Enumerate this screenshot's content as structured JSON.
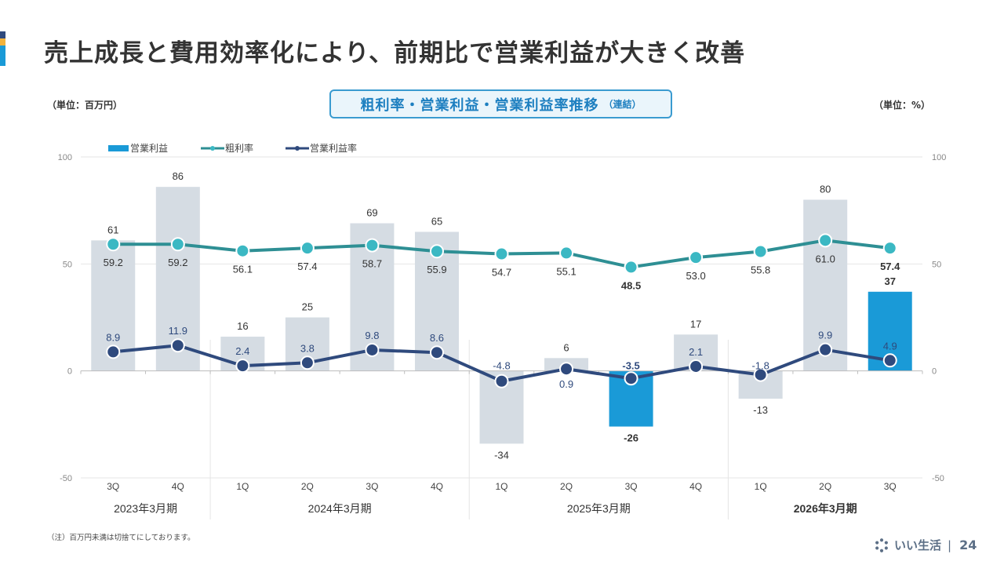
{
  "page": {
    "title": "売上成長と費用効率化により、前期比で営業利益が大きく改善",
    "unit_left": "（単位：百万円）",
    "unit_right": "（単位：%）",
    "chart_title": "粗利率・営業利益・営業利益率推移",
    "chart_title_sub": "（連結）",
    "note": "（注）百万円未満は切捨てにしております。",
    "brand": "いい生活",
    "page_number": "24"
  },
  "colors": {
    "bar_default": "#d5dce3",
    "bar_highlight": "#1a9ad7",
    "gross_margin_line": "#2e8f94",
    "gross_margin_marker": "#3bb8c3",
    "op_margin_line": "#2f4a7d",
    "op_margin_marker": "#2f4a7d",
    "accent_navy": "#2f4a7d",
    "accent_yellow": "#f2b33d",
    "accent_blue": "#1a9ad7"
  },
  "chart_data": {
    "type": "bar+line",
    "title": "粗利率・営業利益・営業利益率推移（連結）",
    "legend": [
      "営業利益",
      "粗利率",
      "営業利益率"
    ],
    "legend_position": "top-left",
    "categories": [
      "3Q",
      "4Q",
      "1Q",
      "2Q",
      "3Q",
      "4Q",
      "1Q",
      "2Q",
      "3Q",
      "4Q",
      "1Q",
      "2Q",
      "3Q"
    ],
    "groups": [
      {
        "label": "2023年3月期",
        "count": 2,
        "bold": false
      },
      {
        "label": "2024年3月期",
        "count": 4,
        "bold": false
      },
      {
        "label": "2025年3月期",
        "count": 4,
        "bold": false
      },
      {
        "label": "2026年3月期",
        "count": 3,
        "bold": true
      }
    ],
    "y_left": {
      "label": "百万円",
      "range": [
        -50,
        100
      ],
      "ticks": [
        100,
        50,
        0,
        -50
      ]
    },
    "y_right": {
      "label": "%",
      "range": [
        -50,
        100
      ],
      "ticks": [
        100,
        50,
        0,
        -50
      ]
    },
    "grid": true,
    "series": [
      {
        "name": "営業利益",
        "type": "bar",
        "axis": "left",
        "values": [
          61,
          86,
          16,
          25,
          69,
          65,
          -34,
          6,
          -26,
          17,
          -13,
          80,
          37
        ],
        "highlight": [
          false,
          false,
          false,
          false,
          false,
          false,
          false,
          false,
          true,
          false,
          false,
          false,
          true
        ]
      },
      {
        "name": "粗利率",
        "type": "line",
        "axis": "right",
        "values": [
          59.2,
          59.2,
          56.1,
          57.4,
          58.7,
          55.9,
          54.7,
          55.1,
          48.5,
          53.0,
          55.8,
          61.0,
          57.4
        ],
        "labels": [
          "59.2",
          "59.2",
          "56.1",
          "57.4",
          "58.7",
          "55.9",
          "54.7",
          "55.1",
          "48.5",
          "53.0",
          "55.8",
          "61.0",
          "57.4"
        ],
        "bold": [
          false,
          false,
          false,
          false,
          false,
          false,
          false,
          false,
          true,
          false,
          false,
          false,
          true
        ]
      },
      {
        "name": "営業利益率",
        "type": "line",
        "axis": "right",
        "values": [
          8.9,
          11.9,
          2.4,
          3.8,
          9.8,
          8.6,
          -4.8,
          0.9,
          -3.5,
          2.1,
          -1.8,
          9.9,
          4.9
        ],
        "labels": [
          "8.9",
          "11.9",
          "2.4",
          "3.8",
          "9.8",
          "8.6",
          "-4.8",
          "0.9",
          "-3.5",
          "2.1",
          "-1.8",
          "9.9",
          "4.9"
        ],
        "bold": [
          false,
          false,
          false,
          false,
          false,
          false,
          false,
          false,
          true,
          false,
          false,
          false,
          false
        ]
      }
    ]
  }
}
